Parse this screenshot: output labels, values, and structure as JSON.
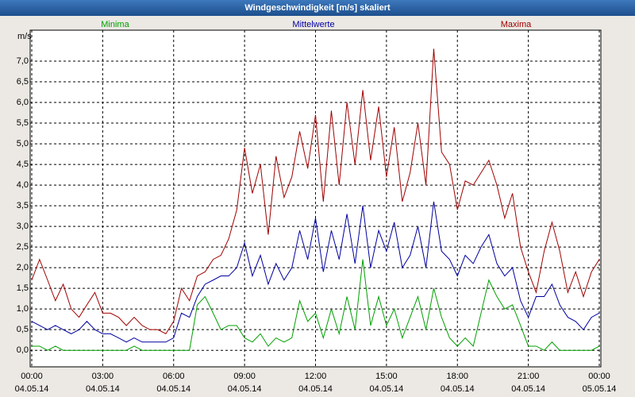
{
  "chart_data": {
    "type": "line",
    "title": "Windgeschwindigkeit [m/s] skaliert",
    "y_label": "m/s",
    "x": [
      0,
      0.33,
      0.67,
      1,
      1.33,
      1.67,
      2,
      2.33,
      2.67,
      3,
      3.33,
      3.67,
      4,
      4.33,
      4.67,
      5,
      5.33,
      5.67,
      6,
      6.33,
      6.67,
      7,
      7.33,
      7.67,
      8,
      8.33,
      8.67,
      9,
      9.33,
      9.67,
      10,
      10.33,
      10.67,
      11,
      11.33,
      11.67,
      12,
      12.33,
      12.67,
      13,
      13.33,
      13.67,
      14,
      14.33,
      14.67,
      15,
      15.33,
      15.67,
      16,
      16.33,
      16.67,
      17,
      17.33,
      17.67,
      18,
      18.33,
      18.67,
      19,
      19.33,
      19.67,
      20,
      20.33,
      20.67,
      21,
      21.33,
      21.67,
      22,
      22.33,
      22.67,
      23,
      23.33,
      23.67,
      24
    ],
    "series": [
      {
        "name": "Minima",
        "color": "#00a000",
        "values": [
          0.1,
          0.1,
          0,
          0.1,
          0,
          0,
          0,
          0,
          0,
          0,
          0,
          0,
          0,
          0.1,
          0,
          0,
          0,
          0,
          0,
          0,
          0,
          1.1,
          1.3,
          0.9,
          0.5,
          0.6,
          0.6,
          0.3,
          0.2,
          0.4,
          0.1,
          0.3,
          0.2,
          0.3,
          1.2,
          0.7,
          0.9,
          0.3,
          1.0,
          0.4,
          1.3,
          0.5,
          2.2,
          0.6,
          1.3,
          0.6,
          1.0,
          0.3,
          0.8,
          1.3,
          0.5,
          1.5,
          0.8,
          0.3,
          0.1,
          0.3,
          0.1,
          0.9,
          1.7,
          1.3,
          1.0,
          1.1,
          0.6,
          0.1,
          0.1,
          0.0,
          0.2,
          0.0,
          0.0,
          0.0,
          0.0,
          0.0,
          0.1
        ]
      },
      {
        "name": "Mittelwerte",
        "color": "#0000a0",
        "values": [
          0.7,
          0.6,
          0.5,
          0.6,
          0.5,
          0.4,
          0.5,
          0.7,
          0.5,
          0.4,
          0.4,
          0.3,
          0.2,
          0.3,
          0.2,
          0.2,
          0.2,
          0.2,
          0.3,
          0.9,
          0.8,
          1.3,
          1.6,
          1.7,
          1.8,
          1.8,
          2.0,
          2.6,
          1.8,
          2.3,
          1.6,
          2.1,
          1.7,
          2.0,
          2.9,
          2.2,
          3.2,
          1.9,
          2.9,
          2.2,
          3.3,
          2.1,
          3.5,
          2.0,
          2.9,
          2.4,
          3.1,
          2.0,
          2.3,
          3.0,
          2.0,
          3.6,
          2.4,
          2.2,
          1.8,
          2.3,
          2.1,
          2.5,
          2.8,
          2.1,
          1.8,
          2.0,
          1.2,
          0.8,
          1.3,
          1.3,
          1.6,
          1.1,
          0.8,
          0.7,
          0.5,
          0.8,
          0.9
        ]
      },
      {
        "name": "Maxima",
        "color": "#a00000",
        "values": [
          1.7,
          2.2,
          1.7,
          1.2,
          1.6,
          1.0,
          0.8,
          1.1,
          1.4,
          0.9,
          0.9,
          0.8,
          0.6,
          0.8,
          0.6,
          0.5,
          0.5,
          0.4,
          0.7,
          1.5,
          1.2,
          1.8,
          1.9,
          2.2,
          2.3,
          2.7,
          3.4,
          4.9,
          3.8,
          4.5,
          2.8,
          4.7,
          3.7,
          4.2,
          5.3,
          4.4,
          5.7,
          3.6,
          5.8,
          4.0,
          6.0,
          4.5,
          6.3,
          4.6,
          5.9,
          4.2,
          5.4,
          3.6,
          4.3,
          5.5,
          4.0,
          7.3,
          4.8,
          4.5,
          3.4,
          4.1,
          4.0,
          4.3,
          4.6,
          4.0,
          3.2,
          3.8,
          2.5,
          1.9,
          1.4,
          2.4,
          3.1,
          2.4,
          1.4,
          1.9,
          1.3,
          1.9,
          2.2
        ]
      }
    ],
    "xlim": [
      0,
      24
    ],
    "xticks": [
      {
        "value": 0,
        "label": "00:00"
      },
      {
        "value": 3,
        "label": "03:00"
      },
      {
        "value": 6,
        "label": "06:00"
      },
      {
        "value": 9,
        "label": "09:00"
      },
      {
        "value": 12,
        "label": "12:00"
      },
      {
        "value": 15,
        "label": "15:00"
      },
      {
        "value": 18,
        "label": "18:00"
      },
      {
        "value": 21,
        "label": "21:00"
      },
      {
        "value": 24,
        "label": "00:00"
      }
    ],
    "xtick_dates": [
      "04.05.14",
      "04.05.14",
      "04.05.14",
      "04.05.14",
      "04.05.14",
      "04.05.14",
      "04.05.14",
      "04.05.14",
      "05.05.14"
    ],
    "ylim": [
      -0.4,
      7.75
    ],
    "yticks": [
      {
        "value": 0,
        "label": "0,0"
      },
      {
        "value": 0.5,
        "label": "0,5"
      },
      {
        "value": 1,
        "label": "1,0"
      },
      {
        "value": 1.5,
        "label": "1,5"
      },
      {
        "value": 2,
        "label": "2,0"
      },
      {
        "value": 2.5,
        "label": "2,5"
      },
      {
        "value": 3,
        "label": "3,0"
      },
      {
        "value": 3.5,
        "label": "3,5"
      },
      {
        "value": 4,
        "label": "4,0"
      },
      {
        "value": 4.5,
        "label": "4,5"
      },
      {
        "value": 5,
        "label": "5,0"
      },
      {
        "value": 5.5,
        "label": "5,5"
      },
      {
        "value": 6,
        "label": "6,0"
      },
      {
        "value": 6.5,
        "label": "6,5"
      },
      {
        "value": 7,
        "label": "7,0"
      }
    ],
    "grid": true
  }
}
